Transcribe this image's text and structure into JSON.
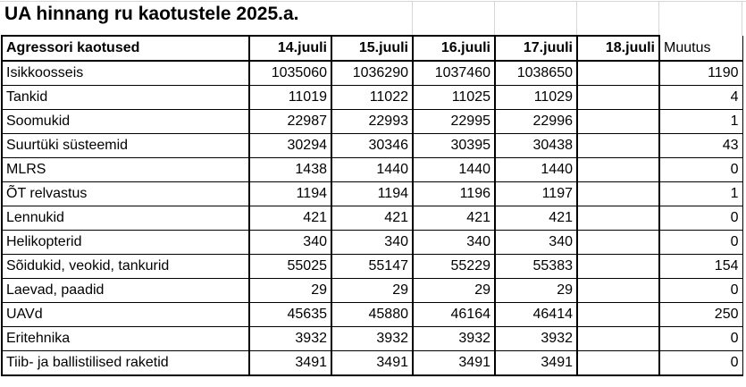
{
  "title": "UA hinnang ru kaotustele 2025.a.",
  "table": {
    "row_header": "Agressori kaotused",
    "date_columns": [
      "14.juuli",
      "15.juuli",
      "16.juuli",
      "17.juuli",
      "18.juuli"
    ],
    "change_column": "Muutus",
    "rows": [
      {
        "label": "Isikkoosseis",
        "values": [
          "1035060",
          "1036290",
          "1037460",
          "1038650",
          ""
        ],
        "muutus": "1190"
      },
      {
        "label": "Tankid",
        "values": [
          "11019",
          "11022",
          "11025",
          "11029",
          ""
        ],
        "muutus": "4"
      },
      {
        "label": "Soomukid",
        "values": [
          "22987",
          "22993",
          "22995",
          "22996",
          ""
        ],
        "muutus": "1"
      },
      {
        "label": "Suurtüki süsteemid",
        "values": [
          "30294",
          "30346",
          "30395",
          "30438",
          ""
        ],
        "muutus": "43"
      },
      {
        "label": "MLRS",
        "values": [
          "1438",
          "1440",
          "1440",
          "1440",
          ""
        ],
        "muutus": "0"
      },
      {
        "label": "ÕT relvastus",
        "values": [
          "1194",
          "1194",
          "1196",
          "1197",
          ""
        ],
        "muutus": "1"
      },
      {
        "label": "Lennukid",
        "values": [
          "421",
          "421",
          "421",
          "421",
          ""
        ],
        "muutus": "0"
      },
      {
        "label": "Helikopterid",
        "values": [
          "340",
          "340",
          "340",
          "340",
          ""
        ],
        "muutus": "0"
      },
      {
        "label": "Sõidukid, veokid, tankurid",
        "values": [
          "55025",
          "55147",
          "55229",
          "55383",
          ""
        ],
        "muutus": "154"
      },
      {
        "label": "Laevad, paadid",
        "values": [
          "29",
          "29",
          "29",
          "29",
          ""
        ],
        "muutus": "0"
      },
      {
        "label": "UAVd",
        "values": [
          "45635",
          "45880",
          "46164",
          "46414",
          ""
        ],
        "muutus": "250"
      },
      {
        "label": "Eritehnika",
        "values": [
          "3932",
          "3932",
          "3932",
          "3932",
          ""
        ],
        "muutus": "0"
      },
      {
        "label": "Tiib- ja ballistilised raketid",
        "values": [
          "3491",
          "3491",
          "3491",
          "3491",
          ""
        ],
        "muutus": "0"
      }
    ]
  },
  "colors": {
    "border": "#000000",
    "gridline": "#d6d6d6",
    "text": "#000000",
    "background": "#ffffff"
  }
}
